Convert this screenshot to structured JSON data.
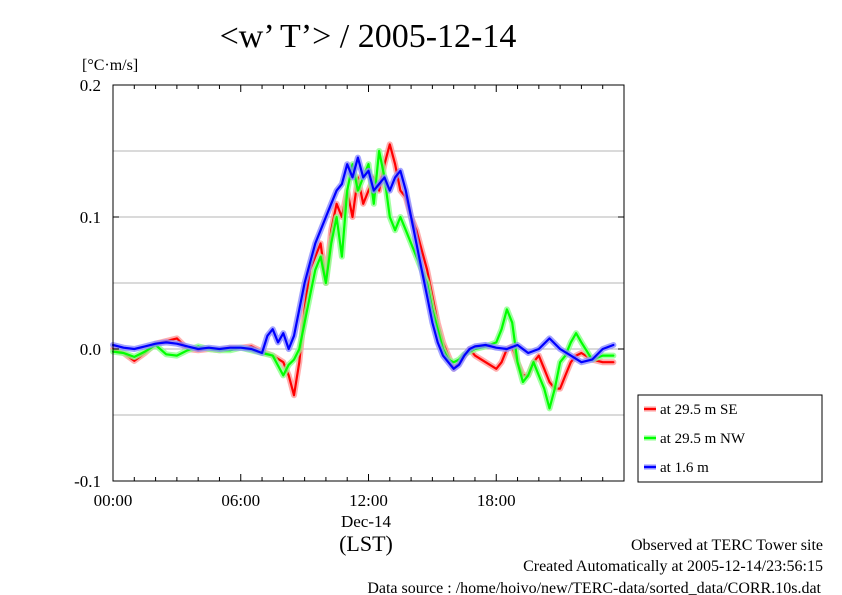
{
  "chart_data": {
    "type": "line",
    "title": "<w’ T’> / 2005-12-14",
    "yunit": "[°C·m/s]",
    "ylim": [
      -0.1,
      0.2
    ],
    "yticks": [
      {
        "v": 0.2,
        "label": "0.2"
      },
      {
        "v": 0.1,
        "label": "0.1"
      },
      {
        "v": 0.0,
        "label": "0.0"
      },
      {
        "v": -0.1,
        "label": "-0.1"
      }
    ],
    "xlim": [
      0,
      24
    ],
    "xticks": [
      {
        "v": 0,
        "label": "00:00"
      },
      {
        "v": 6,
        "label": "06:00"
      },
      {
        "v": 12,
        "label": "12:00"
      },
      {
        "v": 18,
        "label": "18:00"
      }
    ],
    "xdate": "Dec-14",
    "xlabel": "(LST)",
    "grid": "horizontal dashed",
    "legend": "right-bottom",
    "series": [
      {
        "name": "at 29.5 m SE",
        "color": "#ff0000",
        "x": [
          0,
          0.5,
          1,
          1.5,
          2,
          2.5,
          3,
          3.5,
          4,
          4.5,
          5,
          5.5,
          6,
          6.5,
          7,
          7.5,
          8,
          8.25,
          8.5,
          8.75,
          9,
          9.25,
          9.5,
          9.75,
          10,
          10.25,
          10.5,
          10.75,
          11,
          11.25,
          11.5,
          11.75,
          12,
          12.25,
          12.5,
          12.75,
          13,
          13.25,
          13.5,
          13.75,
          14,
          14.25,
          14.5,
          14.75,
          15,
          15.25,
          15.5,
          15.75,
          16,
          16.25,
          16.5,
          16.75,
          17,
          17.5,
          18,
          18.25,
          18.5,
          18.75,
          19,
          19.25,
          19.5,
          19.75,
          20,
          20.25,
          20.5,
          20.75,
          21,
          21.25,
          21.5,
          21.75,
          22,
          22.5,
          23,
          23.5
        ],
        "y": [
          0.0,
          -0.003,
          -0.009,
          -0.003,
          0.004,
          0.006,
          0.008,
          0.0,
          -0.001,
          0.0,
          -0.001,
          0.001,
          0.001,
          0.002,
          -0.002,
          -0.005,
          -0.01,
          -0.02,
          -0.035,
          -0.01,
          0.03,
          0.06,
          0.07,
          0.08,
          0.05,
          0.09,
          0.11,
          0.1,
          0.12,
          0.1,
          0.13,
          0.11,
          0.12,
          0.13,
          0.12,
          0.14,
          0.155,
          0.14,
          0.12,
          0.115,
          0.1,
          0.09,
          0.075,
          0.06,
          0.04,
          0.02,
          0.005,
          -0.005,
          -0.015,
          -0.01,
          -0.005,
          0.0,
          -0.005,
          -0.01,
          -0.015,
          -0.01,
          0.0,
          0.002,
          -0.01,
          -0.02,
          -0.02,
          -0.01,
          -0.005,
          -0.015,
          -0.025,
          -0.03,
          -0.03,
          -0.02,
          -0.01,
          -0.005,
          -0.003,
          -0.008,
          -0.01,
          -0.01
        ]
      },
      {
        "name": "at 29.5 m NW",
        "color": "#00ff00",
        "x": [
          0,
          0.5,
          1,
          1.5,
          2,
          2.5,
          3,
          3.5,
          4,
          4.5,
          5,
          5.5,
          6,
          6.5,
          7,
          7.5,
          8,
          8.25,
          8.5,
          8.75,
          9,
          9.25,
          9.5,
          9.75,
          10,
          10.25,
          10.5,
          10.75,
          11,
          11.25,
          11.5,
          11.75,
          12,
          12.25,
          12.5,
          12.75,
          13,
          13.25,
          13.5,
          13.75,
          14,
          14.25,
          14.5,
          14.75,
          15,
          15.25,
          15.5,
          15.75,
          16,
          16.25,
          16.5,
          16.75,
          17,
          17.5,
          18,
          18.25,
          18.5,
          18.75,
          19,
          19.25,
          19.5,
          19.75,
          20,
          20.25,
          20.5,
          20.75,
          21,
          21.25,
          21.5,
          21.75,
          22,
          22.5,
          23,
          23.5
        ],
        "y": [
          -0.002,
          -0.003,
          -0.006,
          -0.002,
          0.003,
          -0.004,
          -0.005,
          -0.001,
          0.002,
          0.0,
          -0.001,
          -0.001,
          0.001,
          -0.001,
          -0.003,
          -0.005,
          -0.02,
          -0.012,
          -0.008,
          0.0,
          0.02,
          0.04,
          0.06,
          0.07,
          0.05,
          0.08,
          0.1,
          0.07,
          0.12,
          0.14,
          0.12,
          0.13,
          0.14,
          0.11,
          0.15,
          0.13,
          0.1,
          0.09,
          0.1,
          0.09,
          0.08,
          0.07,
          0.06,
          0.05,
          0.03,
          0.015,
          0.0,
          -0.008,
          -0.01,
          -0.008,
          -0.004,
          -0.002,
          0.0,
          0.002,
          0.005,
          0.015,
          0.03,
          0.02,
          -0.01,
          -0.025,
          -0.02,
          -0.01,
          -0.02,
          -0.03,
          -0.045,
          -0.03,
          -0.01,
          -0.005,
          0.005,
          0.012,
          0.005,
          -0.008,
          -0.005,
          -0.005
        ]
      },
      {
        "name": "at 1.6 m",
        "color": "#0000ff",
        "x": [
          0,
          0.5,
          1,
          1.5,
          2,
          2.5,
          3,
          3.5,
          4,
          4.5,
          5,
          5.5,
          6,
          6.5,
          7,
          7.25,
          7.5,
          7.75,
          8,
          8.25,
          8.5,
          8.75,
          9,
          9.25,
          9.5,
          9.75,
          10,
          10.25,
          10.5,
          10.75,
          11,
          11.25,
          11.5,
          11.75,
          12,
          12.25,
          12.5,
          12.75,
          13,
          13.25,
          13.5,
          13.75,
          14,
          14.25,
          14.5,
          14.75,
          15,
          15.25,
          15.5,
          15.75,
          16,
          16.25,
          16.5,
          16.75,
          17,
          17.5,
          18,
          18.5,
          19,
          19.5,
          20,
          20.5,
          21,
          21.5,
          22,
          22.5,
          23,
          23.5
        ],
        "y": [
          0.003,
          0.001,
          0.0,
          0.002,
          0.004,
          0.005,
          0.004,
          0.002,
          0.0,
          0.001,
          0.0,
          0.001,
          0.001,
          0.0,
          -0.003,
          0.01,
          0.015,
          0.005,
          0.012,
          0.0,
          0.01,
          0.03,
          0.05,
          0.065,
          0.08,
          0.09,
          0.1,
          0.11,
          0.12,
          0.125,
          0.14,
          0.13,
          0.145,
          0.13,
          0.135,
          0.12,
          0.125,
          0.13,
          0.12,
          0.13,
          0.135,
          0.12,
          0.1,
          0.08,
          0.06,
          0.04,
          0.02,
          0.005,
          -0.005,
          -0.01,
          -0.015,
          -0.012,
          -0.005,
          0.0,
          0.002,
          0.003,
          0.001,
          0.0,
          0.003,
          -0.003,
          0.0,
          0.008,
          0.0,
          -0.005,
          -0.01,
          -0.008,
          0.0,
          0.003
        ]
      }
    ]
  },
  "footer": {
    "site": "Observed at TERC Tower site",
    "created": "Created Automatically at 2005-12-14/23:56:15",
    "source": "Data source : /home/hoivo/new/TERC-data/sorted_data/CORR.10s.dat"
  }
}
